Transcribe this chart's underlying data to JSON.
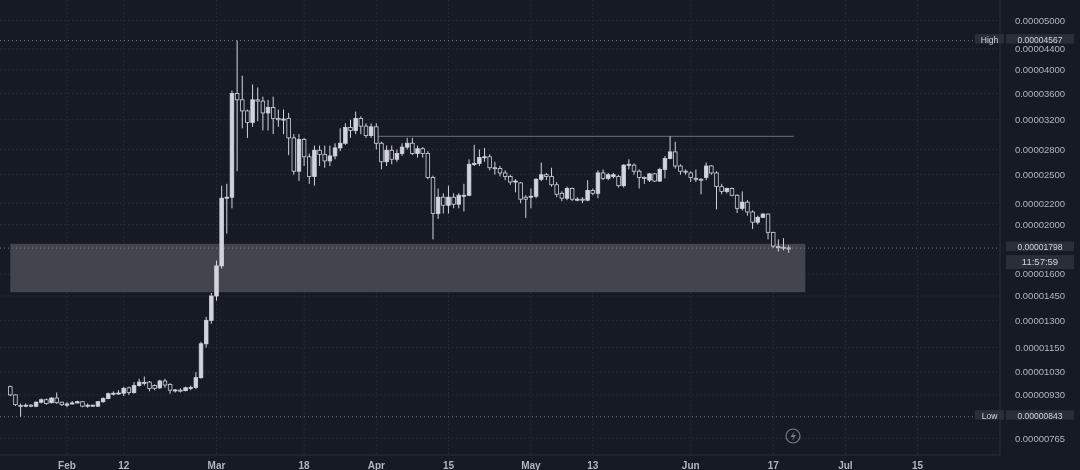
{
  "chart_data": {
    "type": "candlestick",
    "color": "#d1d4dc",
    "x": [
      "--01-21",
      "--01-22",
      "--01-23",
      "--01-24",
      "--01-25",
      "--01-26",
      "--01-27",
      "--01-28",
      "--01-29",
      "--01-30",
      "--01-31",
      "--02-01",
      "--02-02",
      "--02-03",
      "--02-04",
      "--02-05",
      "--02-06",
      "--02-07",
      "--02-08",
      "--02-09",
      "--02-10",
      "--02-11",
      "--02-12",
      "--02-13",
      "--02-14",
      "--02-15",
      "--02-16",
      "--02-17",
      "--02-18",
      "--02-19",
      "--02-20",
      "--02-21",
      "--02-22",
      "--02-23",
      "--02-24",
      "--02-25",
      "--02-26",
      "--02-27",
      "--02-28",
      "--02-29",
      "--03-01",
      "--03-02",
      "--03-03",
      "--03-04",
      "--03-05",
      "--03-06",
      "--03-07",
      "--03-08",
      "--03-09",
      "--03-10",
      "--03-11",
      "--03-12",
      "--03-13",
      "--03-14",
      "--03-15",
      "--03-16",
      "--03-17",
      "--03-18",
      "--03-19",
      "--03-20",
      "--03-21",
      "--03-22",
      "--03-23",
      "--03-24",
      "--03-25",
      "--03-26",
      "--03-27",
      "--03-28",
      "--03-29",
      "--03-30",
      "--03-31",
      "--04-01",
      "--04-02",
      "--04-03",
      "--04-04",
      "--04-05",
      "--04-06",
      "--04-07",
      "--04-08",
      "--04-09",
      "--04-10",
      "--04-11",
      "--04-12",
      "--04-13",
      "--04-14",
      "--04-15",
      "--04-16",
      "--04-17",
      "--04-18",
      "--04-19",
      "--04-20",
      "--04-21",
      "--04-22",
      "--04-23",
      "--04-24",
      "--04-25",
      "--04-26",
      "--04-27",
      "--04-28",
      "--04-29",
      "--04-30",
      "--05-01",
      "--05-02",
      "--05-03",
      "--05-04",
      "--05-05",
      "--05-06",
      "--05-07",
      "--05-08",
      "--05-09",
      "--05-10",
      "--05-11",
      "--05-12",
      "--05-13",
      "--05-14",
      "--05-15",
      "--05-16",
      "--05-17",
      "--05-18",
      "--05-19",
      "--05-20",
      "--05-21",
      "--05-22",
      "--05-23",
      "--05-24",
      "--05-25",
      "--05-26",
      "--05-27",
      "--05-28",
      "--05-29",
      "--05-30",
      "--05-31",
      "--06-01",
      "--06-02",
      "--06-03",
      "--06-04",
      "--06-05",
      "--06-06",
      "--06-07",
      "--06-08",
      "--06-09",
      "--06-10",
      "--06-11",
      "--06-12",
      "--06-13",
      "--06-14",
      "--06-15",
      "--06-16",
      "--06-17",
      "--06-18",
      "--06-19",
      "--06-20"
    ],
    "ohlc": [
      [
        9.65e-06,
        9.7e-06,
        9.25e-06,
        9.3e-06
      ],
      [
        9.3e-06,
        9.32e-06,
        8.85e-06,
        8.9e-06
      ],
      [
        8.87e-06,
        8.95e-06,
        8.43e-06,
        8.85e-06
      ],
      [
        8.85e-06,
        8.95e-06,
        8.8e-06,
        8.88e-06
      ],
      [
        8.88e-06,
        8.92e-06,
        8.8e-06,
        8.86e-06
      ],
      [
        8.84e-06,
        9.03e-06,
        8.8e-06,
        9e-06
      ],
      [
        9e-06,
        9.15e-06,
        8.95e-06,
        9.1e-06
      ],
      [
        9.1e-06,
        9.15e-06,
        8.9e-06,
        8.95e-06
      ],
      [
        8.98e-06,
        9.2e-06,
        8.95e-06,
        9.17e-06
      ],
      [
        9.17e-06,
        9.4e-06,
        8.93e-06,
        8.98e-06
      ],
      [
        9e-06,
        9.02e-06,
        8.85e-06,
        8.9e-06
      ],
      [
        8.88e-06,
        9e-06,
        8.8e-06,
        8.93e-06
      ],
      [
        8.93e-06,
        9.05e-06,
        8.9e-06,
        8.97e-06
      ],
      [
        8.97e-06,
        9.06e-06,
        8.95e-06,
        9.02e-06
      ],
      [
        9.02e-06,
        9.05e-06,
        8.8e-06,
        8.84e-06
      ],
      [
        8.86e-06,
        8.95e-06,
        8.78e-06,
        8.88e-06
      ],
      [
        8.85e-06,
        8.9e-06,
        8.82e-06,
        8.88e-06
      ],
      [
        8.84e-06,
        9.05e-06,
        8.82e-06,
        9.02e-06
      ],
      [
        9.02e-06,
        9.2e-06,
        8.98e-06,
        9.15e-06
      ],
      [
        9.15e-06,
        9.4e-06,
        9.12e-06,
        9.35e-06
      ],
      [
        9.35e-06,
        9.45e-06,
        9.28e-06,
        9.37e-06
      ],
      [
        9.36e-06,
        9.5e-06,
        9.3e-06,
        9.38e-06
      ],
      [
        9.37e-06,
        9.65e-06,
        9.25e-06,
        9.58e-06
      ],
      [
        9.6e-06,
        9.65e-06,
        9.3e-06,
        9.4e-06
      ],
      [
        9.4e-06,
        9.85e-06,
        9.35e-06,
        9.7e-06
      ],
      [
        9.7e-06,
        1e-05,
        9.65e-06,
        9.85e-06
      ],
      [
        9.82e-06,
        1.01e-05,
        9.7e-06,
        9.84e-06
      ],
      [
        9.85e-06,
        9.9e-06,
        9.45e-06,
        9.57e-06
      ],
      [
        9.7e-06,
        9.75e-06,
        9.5e-06,
        9.58e-06
      ],
      [
        9.6e-06,
        9.95e-06,
        9.55e-06,
        9.9e-06
      ],
      [
        9.9e-06,
        1e-05,
        9.6e-06,
        9.72e-06
      ],
      [
        9.75e-06,
        9.8e-06,
        9.35e-06,
        9.5e-06
      ],
      [
        9.5e-06,
        9.55e-06,
        9.4e-06,
        9.51e-06
      ],
      [
        9.5e-06,
        9.58e-06,
        9.4e-06,
        9.48e-06
      ],
      [
        9.48e-06,
        9.65e-06,
        9.45e-06,
        9.6e-06
      ],
      [
        9.6e-06,
        9.7e-06,
        9.5e-06,
        9.62e-06
      ],
      [
        9.62e-06,
        1.03e-05,
        9.55e-06,
        1.005e-05
      ],
      [
        1.005e-05,
        1.18e-05,
        1e-05,
        1.17e-05
      ],
      [
        1.17e-05,
        1.32e-05,
        1.15e-05,
        1.3e-05
      ],
      [
        1.3e-05,
        1.47e-05,
        1.28e-05,
        1.45e-05
      ],
      [
        1.45e-05,
        1.7e-05,
        1.42e-05,
        1.66e-05
      ],
      [
        1.66e-05,
        2.38e-05,
        1.64e-05,
        2.25e-05
      ],
      [
        2.25e-05,
        2.4e-05,
        1.92e-05,
        2.26e-05
      ],
      [
        2.26e-05,
        3.65e-05,
        2.15e-05,
        3.6e-05
      ],
      [
        3.6e-05,
        4.567e-05,
        2.54e-05,
        3.5e-05
      ],
      [
        3.5e-05,
        3.9e-05,
        3.08e-05,
        3.33e-05
      ],
      [
        3.33e-05,
        3.35e-05,
        2.95e-05,
        3.16e-05
      ],
      [
        3.16e-05,
        3.75e-05,
        3.1e-05,
        3.5e-05
      ],
      [
        3.5e-05,
        3.7e-05,
        3.18e-05,
        3.48e-05
      ],
      [
        3.48e-05,
        3.55e-05,
        3.05e-05,
        3.3e-05
      ],
      [
        3.3e-05,
        3.5e-05,
        3.05e-05,
        3.38e-05
      ],
      [
        3.38e-05,
        3.55e-05,
        3e-05,
        3.22e-05
      ],
      [
        3.22e-05,
        3.35e-05,
        3.1e-05,
        3.2e-05
      ],
      [
        3.2e-05,
        3.35e-05,
        3e-05,
        3.21e-05
      ],
      [
        3.22e-05,
        3.3e-05,
        2.73e-05,
        2.95e-05
      ],
      [
        2.95e-05,
        3e-05,
        2.5e-05,
        2.54e-05
      ],
      [
        2.54e-05,
        3e-05,
        2.43e-05,
        2.93e-05
      ],
      [
        2.93e-05,
        2.95e-05,
        2.6e-05,
        2.71e-05
      ],
      [
        2.71e-05,
        2.75e-05,
        2.4e-05,
        2.48e-05
      ],
      [
        2.48e-05,
        2.85e-05,
        2.38e-05,
        2.79e-05
      ],
      [
        2.79e-05,
        2.85e-05,
        2.6e-05,
        2.74e-05
      ],
      [
        2.74e-05,
        2.85e-05,
        2.58e-05,
        2.66e-05
      ],
      [
        2.66e-05,
        2.85e-05,
        2.6e-05,
        2.72e-05
      ],
      [
        2.72e-05,
        2.88e-05,
        2.68e-05,
        2.82e-05
      ],
      [
        2.82e-05,
        3.08e-05,
        2.78e-05,
        2.88e-05
      ],
      [
        2.88e-05,
        3.15e-05,
        2.86e-05,
        3.09e-05
      ],
      [
        3.09e-05,
        3.2e-05,
        2.95e-05,
        3.05e-05
      ],
      [
        3.05e-05,
        3.32e-05,
        3e-05,
        3.22e-05
      ],
      [
        3.22e-05,
        3.25e-05,
        3e-05,
        3.11e-05
      ],
      [
        3.11e-05,
        3.15e-05,
        2.95e-05,
        2.98e-05
      ],
      [
        2.98e-05,
        3.15e-05,
        2.95e-05,
        3.1e-05
      ],
      [
        3.1e-05,
        3.15e-05,
        2.8e-05,
        2.88e-05
      ],
      [
        2.88e-05,
        2.9e-05,
        2.56e-05,
        2.65e-05
      ],
      [
        2.65e-05,
        2.85e-05,
        2.6e-05,
        2.79e-05
      ],
      [
        2.79e-05,
        2.85e-05,
        2.62e-05,
        2.68e-05
      ],
      [
        2.68e-05,
        2.8e-05,
        2.65e-05,
        2.75e-05
      ],
      [
        2.75e-05,
        2.88e-05,
        2.72e-05,
        2.83e-05
      ],
      [
        2.83e-05,
        2.95e-05,
        2.8e-05,
        2.88e-05
      ],
      [
        2.88e-05,
        2.95e-05,
        2.73e-05,
        2.75e-05
      ],
      [
        2.75e-05,
        2.85e-05,
        2.7e-05,
        2.81e-05
      ],
      [
        2.81e-05,
        2.83e-05,
        2.7e-05,
        2.75e-05
      ],
      [
        2.75e-05,
        2.78e-05,
        2.45e-05,
        2.47e-05
      ],
      [
        2.47e-05,
        2.49e-05,
        1.87e-05,
        2.1e-05
      ],
      [
        2.1e-05,
        2.35e-05,
        2.05e-05,
        2.26e-05
      ],
      [
        2.26e-05,
        2.3e-05,
        2.1e-05,
        2.18e-05
      ],
      [
        2.18e-05,
        2.38e-05,
        2.1e-05,
        2.26e-05
      ],
      [
        2.26e-05,
        2.3e-05,
        2.15e-05,
        2.19e-05
      ],
      [
        2.19e-05,
        2.3e-05,
        2.15e-05,
        2.28e-05
      ],
      [
        2.28e-05,
        2.4e-05,
        2.12e-05,
        2.28e-05
      ],
      [
        2.28e-05,
        2.68e-05,
        2.27e-05,
        2.62e-05
      ],
      [
        2.62e-05,
        2.86e-05,
        2.6e-05,
        2.63e-05
      ],
      [
        2.63e-05,
        2.8e-05,
        2.6e-05,
        2.7e-05
      ],
      [
        2.7e-05,
        2.82e-05,
        2.65e-05,
        2.71e-05
      ],
      [
        2.71e-05,
        2.74e-05,
        2.55e-05,
        2.58e-05
      ],
      [
        2.58e-05,
        2.65e-05,
        2.5e-05,
        2.57e-05
      ],
      [
        2.57e-05,
        2.6e-05,
        2.48e-05,
        2.52e-05
      ],
      [
        2.52e-05,
        2.55e-05,
        2.44e-05,
        2.48e-05
      ],
      [
        2.48e-05,
        2.5e-05,
        2.39e-05,
        2.42e-05
      ],
      [
        2.42e-05,
        2.45e-05,
        2.31e-05,
        2.43e-05
      ],
      [
        2.41e-05,
        2.42e-05,
        2.2e-05,
        2.24e-05
      ],
      [
        2.26e-05,
        2.28e-05,
        2.06e-05,
        2.24e-05
      ],
      [
        2.26e-05,
        2.35e-05,
        2.15e-05,
        2.27e-05
      ],
      [
        2.27e-05,
        2.46e-05,
        2.25e-05,
        2.45e-05
      ],
      [
        2.45e-05,
        2.64e-05,
        2.43e-05,
        2.5e-05
      ],
      [
        2.5e-05,
        2.52e-05,
        2.44e-05,
        2.48e-05
      ],
      [
        2.48e-05,
        2.58e-05,
        2.37e-05,
        2.39e-05
      ],
      [
        2.39e-05,
        2.42e-05,
        2.26e-05,
        2.29e-05
      ],
      [
        2.3e-05,
        2.32e-05,
        2.22e-05,
        2.25e-05
      ],
      [
        2.25e-05,
        2.37e-05,
        2.23e-05,
        2.35e-05
      ],
      [
        2.35e-05,
        2.36e-05,
        2.22e-05,
        2.24e-05
      ],
      [
        2.24e-05,
        2.26e-05,
        2.22e-05,
        2.24e-05
      ],
      [
        2.24e-05,
        2.26e-05,
        2.2e-05,
        2.23e-05
      ],
      [
        2.23e-05,
        2.44e-05,
        2.22e-05,
        2.33e-05
      ],
      [
        2.33e-05,
        2.35e-05,
        2.28e-05,
        2.3e-05
      ],
      [
        2.3e-05,
        2.55e-05,
        2.25e-05,
        2.52e-05
      ],
      [
        2.52e-05,
        2.56e-05,
        2.44e-05,
        2.46e-05
      ],
      [
        2.46e-05,
        2.52e-05,
        2.44e-05,
        2.5e-05
      ],
      [
        2.48e-05,
        2.52e-05,
        2.46e-05,
        2.5e-05
      ],
      [
        2.48e-05,
        2.5e-05,
        2.36e-05,
        2.38e-05
      ],
      [
        2.38e-05,
        2.62e-05,
        2.36e-05,
        2.61e-05
      ],
      [
        2.61e-05,
        2.68e-05,
        2.56e-05,
        2.62e-05
      ],
      [
        2.61e-05,
        2.63e-05,
        2.5e-05,
        2.54e-05
      ],
      [
        2.54e-05,
        2.56e-05,
        2.35e-05,
        2.47e-05
      ],
      [
        2.47e-05,
        2.48e-05,
        2.4e-05,
        2.46e-05
      ],
      [
        2.44e-05,
        2.52e-05,
        2.42e-05,
        2.51e-05
      ],
      [
        2.51e-05,
        2.52e-05,
        2.42e-05,
        2.43e-05
      ],
      [
        2.43e-05,
        2.58e-05,
        2.42e-05,
        2.56e-05
      ],
      [
        2.56e-05,
        2.72e-05,
        2.46e-05,
        2.69e-05
      ],
      [
        2.69e-05,
        2.97e-05,
        2.68e-05,
        2.77e-05
      ],
      [
        2.77e-05,
        2.9e-05,
        2.57e-05,
        2.6e-05
      ],
      [
        2.6e-05,
        2.62e-05,
        2.5e-05,
        2.54e-05
      ],
      [
        2.54e-05,
        2.56e-05,
        2.5e-05,
        2.53e-05
      ],
      [
        2.52e-05,
        2.54e-05,
        2.42e-05,
        2.47e-05
      ],
      [
        2.46e-05,
        2.56e-05,
        2.42e-05,
        2.45e-05
      ],
      [
        2.45e-05,
        2.46e-05,
        2.29e-05,
        2.44e-05
      ],
      [
        2.47e-05,
        2.64e-05,
        2.44e-05,
        2.6e-05
      ],
      [
        2.6e-05,
        2.61e-05,
        2.5e-05,
        2.52e-05
      ],
      [
        2.52e-05,
        2.54e-05,
        2.14e-05,
        2.37e-05
      ],
      [
        2.37e-05,
        2.4e-05,
        2.29e-05,
        2.32e-05
      ],
      [
        2.32e-05,
        2.36e-05,
        2.3e-05,
        2.35e-05
      ],
      [
        2.35e-05,
        2.36e-05,
        2.27e-05,
        2.28e-05
      ],
      [
        2.28e-05,
        2.29e-05,
        2.105e-05,
        2.15e-05
      ],
      [
        2.15e-05,
        2.32e-05,
        2.13e-05,
        2.21e-05
      ],
      [
        2.21e-05,
        2.23e-05,
        2.08e-05,
        2.115e-05
      ],
      [
        2.115e-05,
        2.13e-05,
        1.96e-05,
        2.02e-05
      ],
      [
        2.02e-05,
        2.08e-05,
        2e-05,
        2.065e-05
      ],
      [
        2.065e-05,
        2.105e-05,
        2.06e-05,
        2.095e-05
      ],
      [
        2.095e-05,
        2.1e-05,
        1.87e-05,
        1.93e-05
      ],
      [
        1.93e-05,
        1.935e-05,
        1.8e-05,
        1.815e-05
      ],
      [
        1.81e-05,
        1.87e-05,
        1.77e-05,
        1.805e-05
      ],
      [
        1.805e-05,
        1.88e-05,
        1.78e-05,
        1.8e-05
      ],
      [
        1.8e-05,
        1.82e-05,
        1.76e-05,
        1.798e-05
      ]
    ],
    "series": [
      {
        "type": "line",
        "color": "#5d606b",
        "x": [
          "--04-01",
          "--06-21"
        ],
        "values": [
          2.97e-05,
          2.97e-05
        ]
      }
    ],
    "log": true,
    "grid": true,
    "xlim": [
      "--01-19",
      "--07-31"
    ],
    "xticks": [
      {
        "value": "--02-01",
        "label": "Feb"
      },
      {
        "value": "--02-12",
        "label": "12"
      },
      {
        "value": "--03-01",
        "label": "Mar"
      },
      {
        "value": "--03-18",
        "label": "18"
      },
      {
        "value": "--04-01",
        "label": "Apr"
      },
      {
        "value": "--04-15",
        "label": "15"
      },
      {
        "value": "--05-01",
        "label": "May"
      },
      {
        "value": "--05-13",
        "label": "13"
      },
      {
        "value": "--06-01",
        "label": "Jun"
      },
      {
        "value": "--06-17",
        "label": "17"
      },
      {
        "value": "--07-01",
        "label": "Jul"
      },
      {
        "value": "--07-15",
        "label": "15"
      }
    ],
    "ylim": [
      7.1e-06,
      5.48e-05
    ],
    "yticks": [
      {
        "value": 7.65e-06,
        "label": "0.00000765"
      },
      {
        "value": 9.3e-06,
        "label": "0.00000930"
      },
      {
        "value": 1.03e-05,
        "label": "0.00001030"
      },
      {
        "value": 1.15e-05,
        "label": "0.00001150"
      },
      {
        "value": 1.3e-05,
        "label": "0.00001300"
      },
      {
        "value": 1.45e-05,
        "label": "0.00001450"
      },
      {
        "value": 1.6e-05,
        "label": "0.00001600"
      },
      {
        "value": 2e-05,
        "label": "0.00002000"
      },
      {
        "value": 2.2e-05,
        "label": "0.00002200"
      },
      {
        "value": 2.5e-05,
        "label": "0.00002500"
      },
      {
        "value": 2.8e-05,
        "label": "0.00002800"
      },
      {
        "value": 3.2e-05,
        "label": "0.00003200"
      },
      {
        "value": 3.6e-05,
        "label": "0.00003600"
      },
      {
        "value": 4e-05,
        "label": "0.00004000"
      },
      {
        "value": 4.4e-05,
        "label": "0.00004400"
      },
      {
        "value": 5e-05,
        "label": "0.00005000"
      }
    ],
    "ref_lines": [
      {
        "axis": "y",
        "value": 4.567e-05,
        "label": "0.00004567",
        "color": "#787b86",
        "line_style": "dotted"
      },
      {
        "axis": "y",
        "value": 8.43e-06,
        "label": "0.00000843",
        "color": "#787b86",
        "line_style": "dotted"
      },
      {
        "axis": "y",
        "value": 1.798e-05,
        "label": "0.00001798",
        "color": "#787b86",
        "line_style": "dotted"
      }
    ],
    "bands": [
      {
        "axis": "y",
        "from": 1.475e-05,
        "to": 1.833e-05,
        "color": "#4a4c56"
      }
    ],
    "annotations": [
      {
        "text": "High",
        "y": 4.567e-05
      },
      {
        "text": "Low",
        "y": 8.43e-06
      },
      "11:57:59"
    ]
  }
}
